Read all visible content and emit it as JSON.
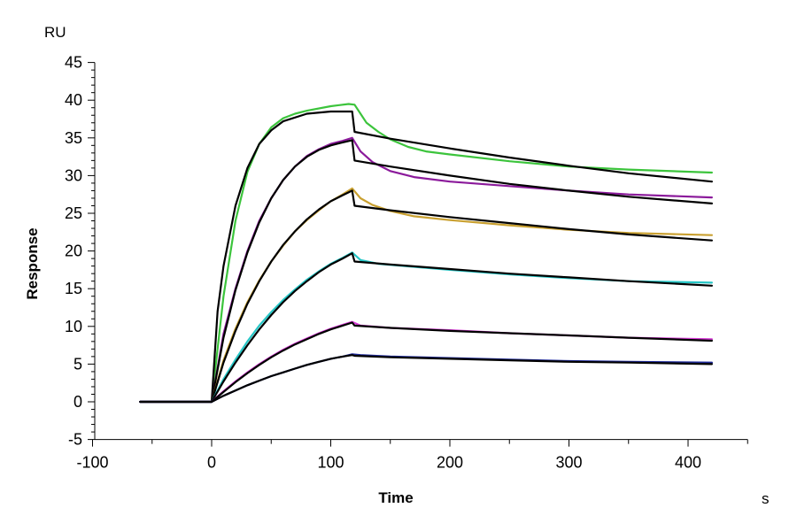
{
  "chart_data": {
    "type": "line",
    "title": "",
    "xlabel": "Time",
    "ylabel": "Response",
    "x_unit": "s",
    "y_unit": "RU",
    "xlim": [
      -100,
      450
    ],
    "ylim": [
      -5,
      45
    ],
    "xticks": [
      -100,
      0,
      100,
      200,
      300,
      400
    ],
    "yticks": [
      -5,
      0,
      5,
      10,
      15,
      20,
      25,
      30,
      35,
      40,
      45
    ],
    "grid": false,
    "legend": "none",
    "series": [
      {
        "color": "#3cc43c",
        "points": [
          [
            -60,
            0
          ],
          [
            0,
            0
          ],
          [
            10,
            14
          ],
          [
            20,
            24
          ],
          [
            30,
            30.5
          ],
          [
            40,
            34.2
          ],
          [
            50,
            36.4
          ],
          [
            60,
            37.6
          ],
          [
            70,
            38.2
          ],
          [
            80,
            38.6
          ],
          [
            100,
            39.2
          ],
          [
            115,
            39.5
          ],
          [
            120,
            39.4
          ],
          [
            130,
            37
          ],
          [
            140,
            35.8
          ],
          [
            150,
            34.8
          ],
          [
            165,
            33.8
          ],
          [
            180,
            33.2
          ],
          [
            200,
            32.8
          ],
          [
            250,
            31.9
          ],
          [
            300,
            31.2
          ],
          [
            350,
            30.8
          ],
          [
            420,
            30.4
          ]
        ]
      },
      {
        "color": "#000000",
        "points": [
          [
            -60,
            0
          ],
          [
            0,
            0
          ],
          [
            5,
            12
          ],
          [
            10,
            18
          ],
          [
            20,
            26
          ],
          [
            30,
            31
          ],
          [
            40,
            34.2
          ],
          [
            50,
            36
          ],
          [
            60,
            37.2
          ],
          [
            80,
            38.2
          ],
          [
            100,
            38.5
          ],
          [
            118,
            38.5
          ],
          [
            120,
            35.8
          ],
          [
            150,
            34.9
          ],
          [
            200,
            33.6
          ],
          [
            250,
            32.4
          ],
          [
            300,
            31.3
          ],
          [
            350,
            30.3
          ],
          [
            420,
            29.2
          ]
        ]
      },
      {
        "color": "#8b1a9b",
        "points": [
          [
            -60,
            0
          ],
          [
            0,
            0
          ],
          [
            10,
            9
          ],
          [
            20,
            15
          ],
          [
            30,
            20
          ],
          [
            40,
            24
          ],
          [
            50,
            27
          ],
          [
            60,
            29.4
          ],
          [
            70,
            31.2
          ],
          [
            80,
            32.6
          ],
          [
            90,
            33.5
          ],
          [
            100,
            34.2
          ],
          [
            110,
            34.6
          ],
          [
            118,
            35
          ],
          [
            125,
            33.2
          ],
          [
            135,
            31.8
          ],
          [
            150,
            30.6
          ],
          [
            170,
            29.8
          ],
          [
            200,
            29.2
          ],
          [
            250,
            28.6
          ],
          [
            300,
            28
          ],
          [
            350,
            27.5
          ],
          [
            420,
            27.1
          ]
        ]
      },
      {
        "color": "#000000",
        "points": [
          [
            -60,
            0
          ],
          [
            0,
            0
          ],
          [
            10,
            8.5
          ],
          [
            20,
            14.8
          ],
          [
            30,
            19.8
          ],
          [
            40,
            23.8
          ],
          [
            50,
            27
          ],
          [
            60,
            29.4
          ],
          [
            70,
            31.2
          ],
          [
            80,
            32.5
          ],
          [
            90,
            33.4
          ],
          [
            100,
            34
          ],
          [
            110,
            34.4
          ],
          [
            118,
            34.7
          ],
          [
            120,
            32
          ],
          [
            150,
            31.2
          ],
          [
            200,
            30
          ],
          [
            250,
            28.9
          ],
          [
            300,
            28
          ],
          [
            350,
            27.2
          ],
          [
            420,
            26.3
          ]
        ]
      },
      {
        "color": "#c9a030",
        "points": [
          [
            -60,
            0
          ],
          [
            0,
            0
          ],
          [
            10,
            5.5
          ],
          [
            20,
            9.7
          ],
          [
            30,
            13.2
          ],
          [
            40,
            16.1
          ],
          [
            50,
            18.6
          ],
          [
            60,
            20.7
          ],
          [
            70,
            22.6
          ],
          [
            80,
            24.1
          ],
          [
            90,
            25.4
          ],
          [
            100,
            26.6
          ],
          [
            110,
            27.5
          ],
          [
            118,
            28.3
          ],
          [
            125,
            27
          ],
          [
            135,
            26.1
          ],
          [
            150,
            25.3
          ],
          [
            170,
            24.6
          ],
          [
            200,
            24.1
          ],
          [
            250,
            23.4
          ],
          [
            300,
            22.8
          ],
          [
            350,
            22.4
          ],
          [
            420,
            22.1
          ]
        ]
      },
      {
        "color": "#000000",
        "points": [
          [
            -60,
            0
          ],
          [
            0,
            0
          ],
          [
            10,
            5.2
          ],
          [
            20,
            9.4
          ],
          [
            30,
            13
          ],
          [
            40,
            16
          ],
          [
            50,
            18.6
          ],
          [
            60,
            20.8
          ],
          [
            70,
            22.6
          ],
          [
            80,
            24.2
          ],
          [
            90,
            25.5
          ],
          [
            100,
            26.6
          ],
          [
            110,
            27.4
          ],
          [
            118,
            28
          ],
          [
            120,
            26
          ],
          [
            150,
            25.4
          ],
          [
            200,
            24.5
          ],
          [
            250,
            23.7
          ],
          [
            300,
            22.9
          ],
          [
            350,
            22.2
          ],
          [
            420,
            21.4
          ]
        ]
      },
      {
        "color": "#26c6c6",
        "points": [
          [
            -60,
            0
          ],
          [
            0,
            0
          ],
          [
            10,
            3
          ],
          [
            20,
            5.6
          ],
          [
            30,
            8
          ],
          [
            40,
            10.1
          ],
          [
            50,
            11.9
          ],
          [
            60,
            13.5
          ],
          [
            70,
            14.9
          ],
          [
            80,
            16.2
          ],
          [
            90,
            17.3
          ],
          [
            100,
            18.3
          ],
          [
            110,
            19.1
          ],
          [
            118,
            19.8
          ],
          [
            125,
            18.8
          ],
          [
            140,
            18.3
          ],
          [
            170,
            17.9
          ],
          [
            200,
            17.5
          ],
          [
            250,
            16.9
          ],
          [
            300,
            16.4
          ],
          [
            350,
            16
          ],
          [
            420,
            15.8
          ]
        ]
      },
      {
        "color": "#000000",
        "points": [
          [
            -60,
            0
          ],
          [
            0,
            0
          ],
          [
            10,
            2.7
          ],
          [
            20,
            5.2
          ],
          [
            30,
            7.5
          ],
          [
            40,
            9.6
          ],
          [
            50,
            11.5
          ],
          [
            60,
            13.2
          ],
          [
            70,
            14.7
          ],
          [
            80,
            16
          ],
          [
            90,
            17.2
          ],
          [
            100,
            18.2
          ],
          [
            110,
            19
          ],
          [
            118,
            19.7
          ],
          [
            120,
            18.6
          ],
          [
            150,
            18.2
          ],
          [
            200,
            17.6
          ],
          [
            250,
            17
          ],
          [
            300,
            16.5
          ],
          [
            350,
            16
          ],
          [
            420,
            15.4
          ]
        ]
      },
      {
        "color": "#d438d4",
        "points": [
          [
            -60,
            0
          ],
          [
            0,
            0
          ],
          [
            10,
            1.4
          ],
          [
            20,
            2.7
          ],
          [
            30,
            3.9
          ],
          [
            40,
            5
          ],
          [
            50,
            6
          ],
          [
            60,
            6.9
          ],
          [
            70,
            7.7
          ],
          [
            80,
            8.4
          ],
          [
            90,
            9.1
          ],
          [
            100,
            9.7
          ],
          [
            110,
            10.2
          ],
          [
            118,
            10.6
          ],
          [
            125,
            10.1
          ],
          [
            150,
            9.8
          ],
          [
            200,
            9.5
          ],
          [
            250,
            9.1
          ],
          [
            300,
            8.8
          ],
          [
            350,
            8.5
          ],
          [
            420,
            8.3
          ]
        ]
      },
      {
        "color": "#000000",
        "points": [
          [
            -60,
            0
          ],
          [
            0,
            0
          ],
          [
            10,
            1.3
          ],
          [
            20,
            2.6
          ],
          [
            30,
            3.8
          ],
          [
            40,
            4.9
          ],
          [
            50,
            5.9
          ],
          [
            60,
            6.8
          ],
          [
            70,
            7.6
          ],
          [
            80,
            8.3
          ],
          [
            90,
            9
          ],
          [
            100,
            9.6
          ],
          [
            110,
            10.1
          ],
          [
            118,
            10.5
          ],
          [
            120,
            10.1
          ],
          [
            150,
            9.8
          ],
          [
            200,
            9.4
          ],
          [
            250,
            9.1
          ],
          [
            300,
            8.8
          ],
          [
            350,
            8.5
          ],
          [
            420,
            8.1
          ]
        ]
      },
      {
        "color": "#1f2a9a",
        "points": [
          [
            -60,
            0
          ],
          [
            0,
            0
          ],
          [
            10,
            0.8
          ],
          [
            20,
            1.5
          ],
          [
            30,
            2.2
          ],
          [
            40,
            2.8
          ],
          [
            50,
            3.4
          ],
          [
            60,
            3.9
          ],
          [
            70,
            4.4
          ],
          [
            80,
            4.9
          ],
          [
            90,
            5.3
          ],
          [
            100,
            5.7
          ],
          [
            110,
            6
          ],
          [
            118,
            6.3
          ],
          [
            125,
            6.2
          ],
          [
            150,
            6
          ],
          [
            200,
            5.8
          ],
          [
            250,
            5.6
          ],
          [
            300,
            5.4
          ],
          [
            350,
            5.3
          ],
          [
            420,
            5.2
          ]
        ]
      },
      {
        "color": "#000000",
        "points": [
          [
            -60,
            0
          ],
          [
            0,
            0
          ],
          [
            10,
            0.8
          ],
          [
            20,
            1.5
          ],
          [
            30,
            2.2
          ],
          [
            40,
            2.8
          ],
          [
            50,
            3.4
          ],
          [
            60,
            3.9
          ],
          [
            70,
            4.4
          ],
          [
            80,
            4.9
          ],
          [
            90,
            5.3
          ],
          [
            100,
            5.7
          ],
          [
            110,
            6
          ],
          [
            118,
            6.2
          ],
          [
            120,
            6.1
          ],
          [
            150,
            5.9
          ],
          [
            200,
            5.7
          ],
          [
            250,
            5.5
          ],
          [
            300,
            5.3
          ],
          [
            350,
            5.2
          ],
          [
            420,
            5
          ]
        ]
      }
    ]
  }
}
